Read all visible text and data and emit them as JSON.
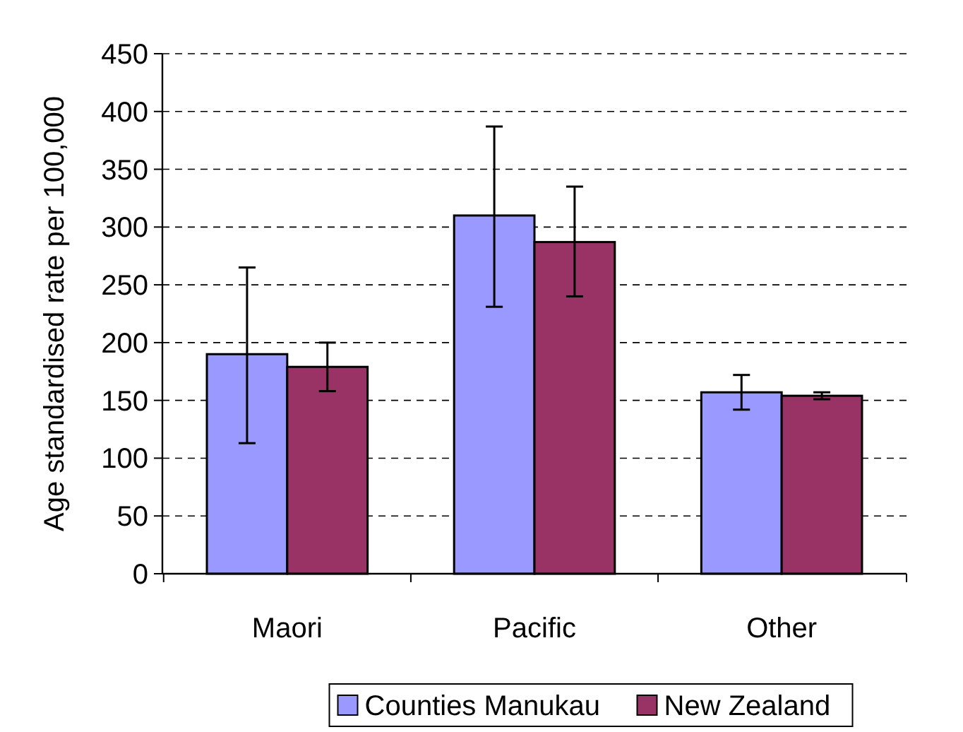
{
  "chart_data": {
    "type": "bar",
    "ylabel": "Age standardised rate per 100,000",
    "categories": [
      "Maori",
      "Pacific",
      "Other"
    ],
    "series": [
      {
        "name": "Counties Manukau",
        "color": "#9999ff",
        "values": [
          190,
          310,
          157
        ],
        "errors": [
          [
            113,
            265
          ],
          [
            231,
            387
          ],
          [
            142,
            172
          ]
        ]
      },
      {
        "name": "New Zealand",
        "color": "#993366",
        "values": [
          179,
          287,
          154
        ],
        "errors": [
          [
            158,
            200
          ],
          [
            240,
            335
          ],
          [
            151,
            157
          ]
        ]
      }
    ],
    "ylim": [
      0,
      450
    ],
    "yticks": [
      0,
      50,
      100,
      150,
      200,
      250,
      300,
      350,
      400,
      450
    ],
    "grid": "y",
    "legend": "bottom"
  }
}
